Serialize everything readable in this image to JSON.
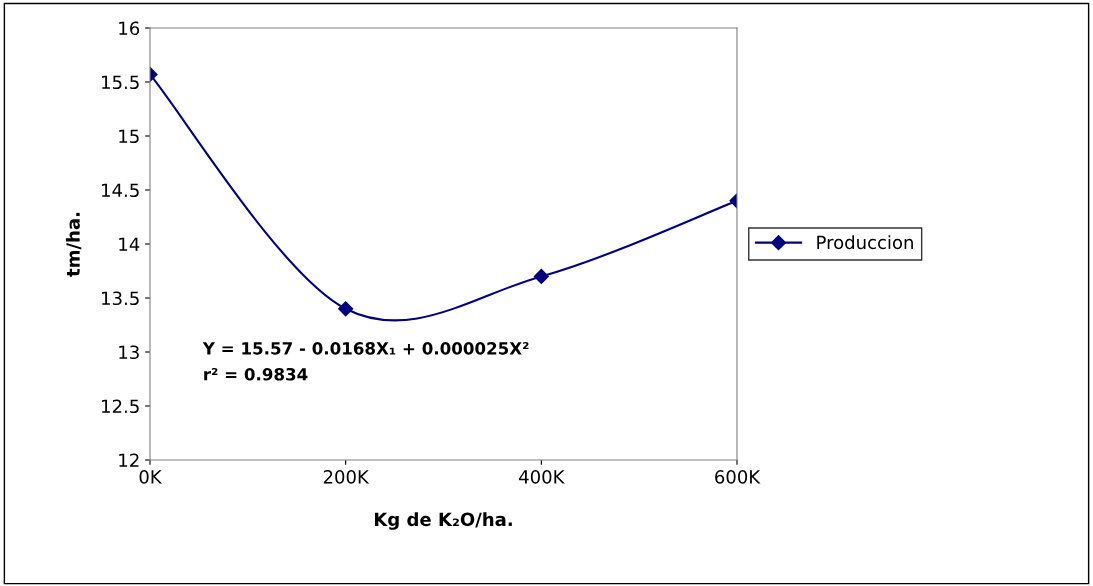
{
  "chart_data": {
    "type": "line",
    "xlabel": "Kg de K₂O/ha.",
    "ylabel": "tm/ha.",
    "categories": [
      "0K",
      "200K",
      "400K",
      "600K"
    ],
    "series": [
      {
        "name": "Produccion",
        "color": "#000080",
        "values": [
          15.57,
          13.4,
          13.7,
          14.4
        ]
      }
    ],
    "ylim": [
      12,
      16
    ],
    "yticks": [
      12,
      12.5,
      13,
      13.5,
      14,
      14.5,
      15,
      15.5,
      16
    ],
    "annotations": [
      "Y = 15.57 - 0.0168X₁ + 0.000025X²",
      "r² = 0.9834"
    ],
    "marker": "diamond",
    "line_style": "solid",
    "grid": false,
    "legend": "right"
  }
}
